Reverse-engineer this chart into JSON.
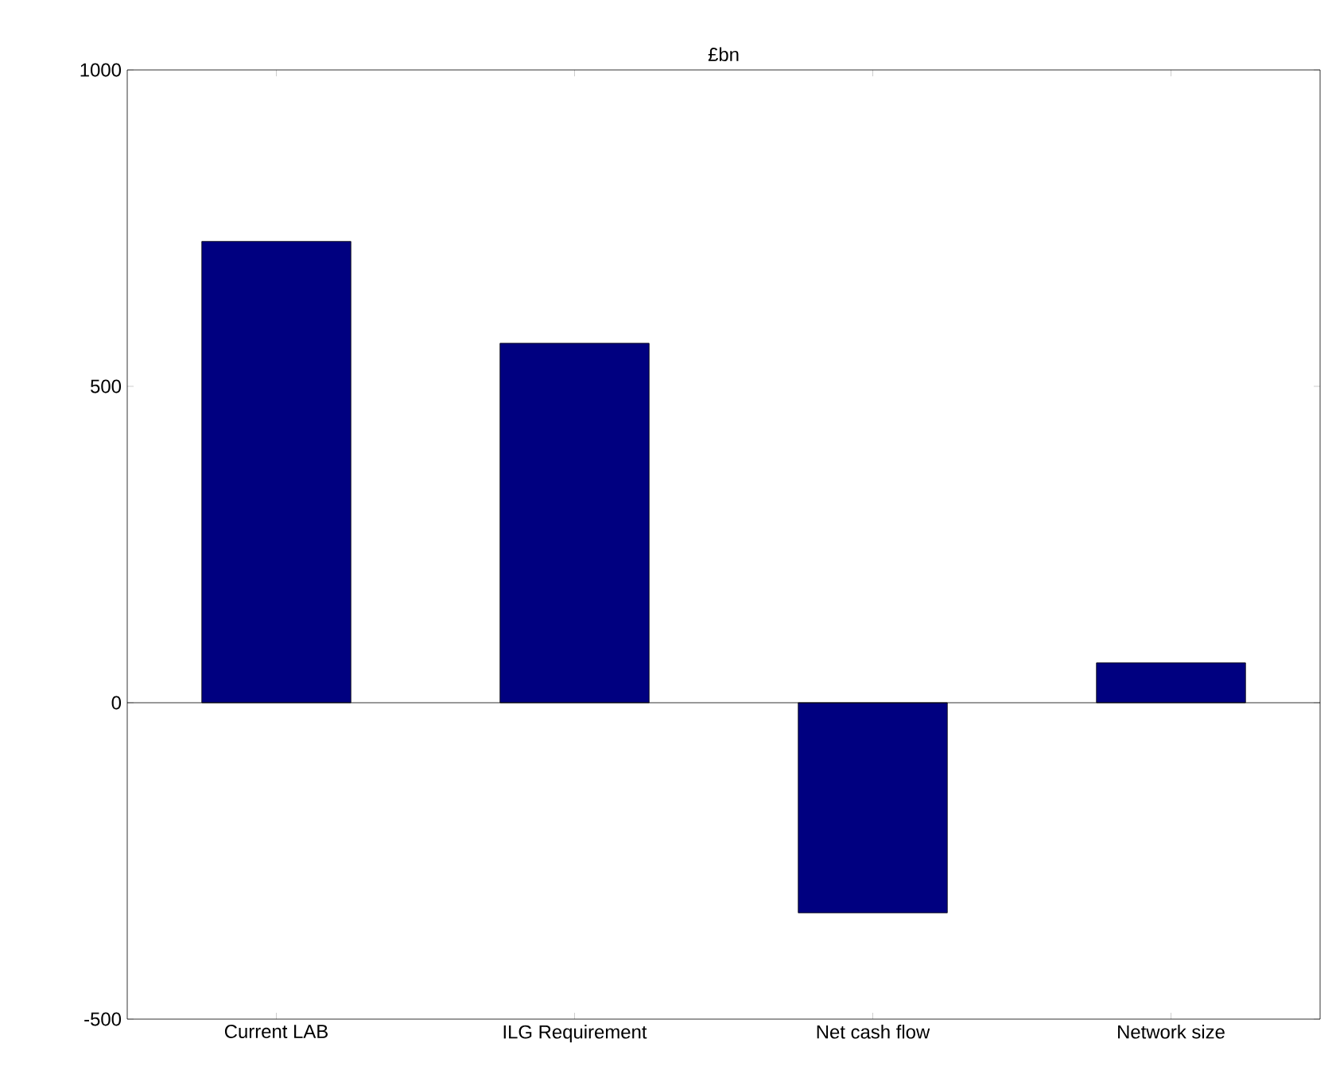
{
  "chart_data": {
    "type": "bar",
    "title": "£bn",
    "categories": [
      "Current LAB",
      "ILG Requirement",
      "Net cash flow",
      "Network size"
    ],
    "values": [
      729,
      568,
      -332,
      63
    ],
    "color": "#000080",
    "ylim": [
      -500,
      1000
    ],
    "yticks": [
      -500,
      0,
      500,
      1000
    ],
    "ref_lines": [
      {
        "axis": "y",
        "value": 0
      }
    ]
  }
}
